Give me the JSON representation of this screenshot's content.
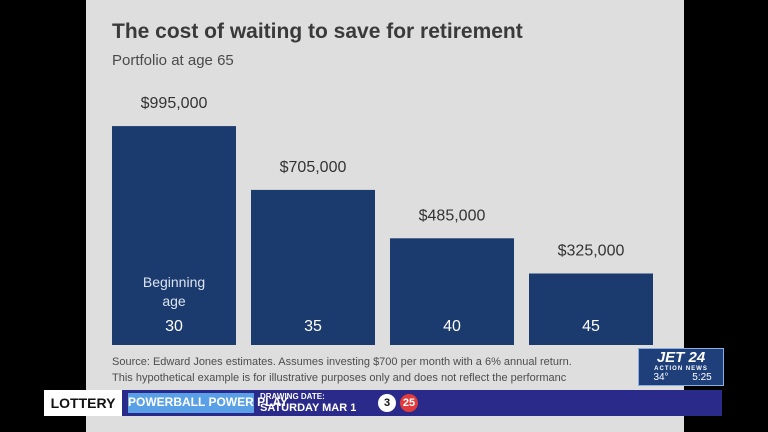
{
  "chart_data": {
    "type": "bar",
    "title": "The cost of waiting to save for retirement",
    "subtitle": "Portfolio at age 65",
    "categories": [
      "30",
      "35",
      "40",
      "45"
    ],
    "values": [
      995000,
      705000,
      485000,
      325000
    ],
    "value_labels": [
      "$995,000",
      "$705,000",
      "$485,000",
      "$325,000"
    ],
    "category_caption": "Beginning age",
    "caption_lines": [
      "Beginning",
      "age"
    ],
    "bar_color": "#1b3a6e",
    "ylim": [
      0,
      1000000
    ],
    "xlabel": "",
    "ylabel": "",
    "grid": false,
    "legend": "none"
  },
  "source": {
    "line1": "Source: Edward Jones estimates. Assumes investing $700 per month with a 6% annual return.",
    "line2": "This hypothetical example is for illustrative purposes only and does not reflect the performanc"
  },
  "broadcast": {
    "logo": "JET 24",
    "logo_sub": "ACTION NEWS",
    "temperature": "34°",
    "time": "5:25",
    "ticker": {
      "section": "LOTTERY",
      "game": "POWERBALL POWER PLAY",
      "drawing_label": "DRAWING DATE:",
      "drawing_value": "SATURDAY MAR 1",
      "numbers": [
        "3",
        "25"
      ]
    },
    "colors": {
      "ticker_bg": "#2a2a8a",
      "game_bg": "#5aa0e6",
      "red_ball": "#e23b3b"
    }
  }
}
